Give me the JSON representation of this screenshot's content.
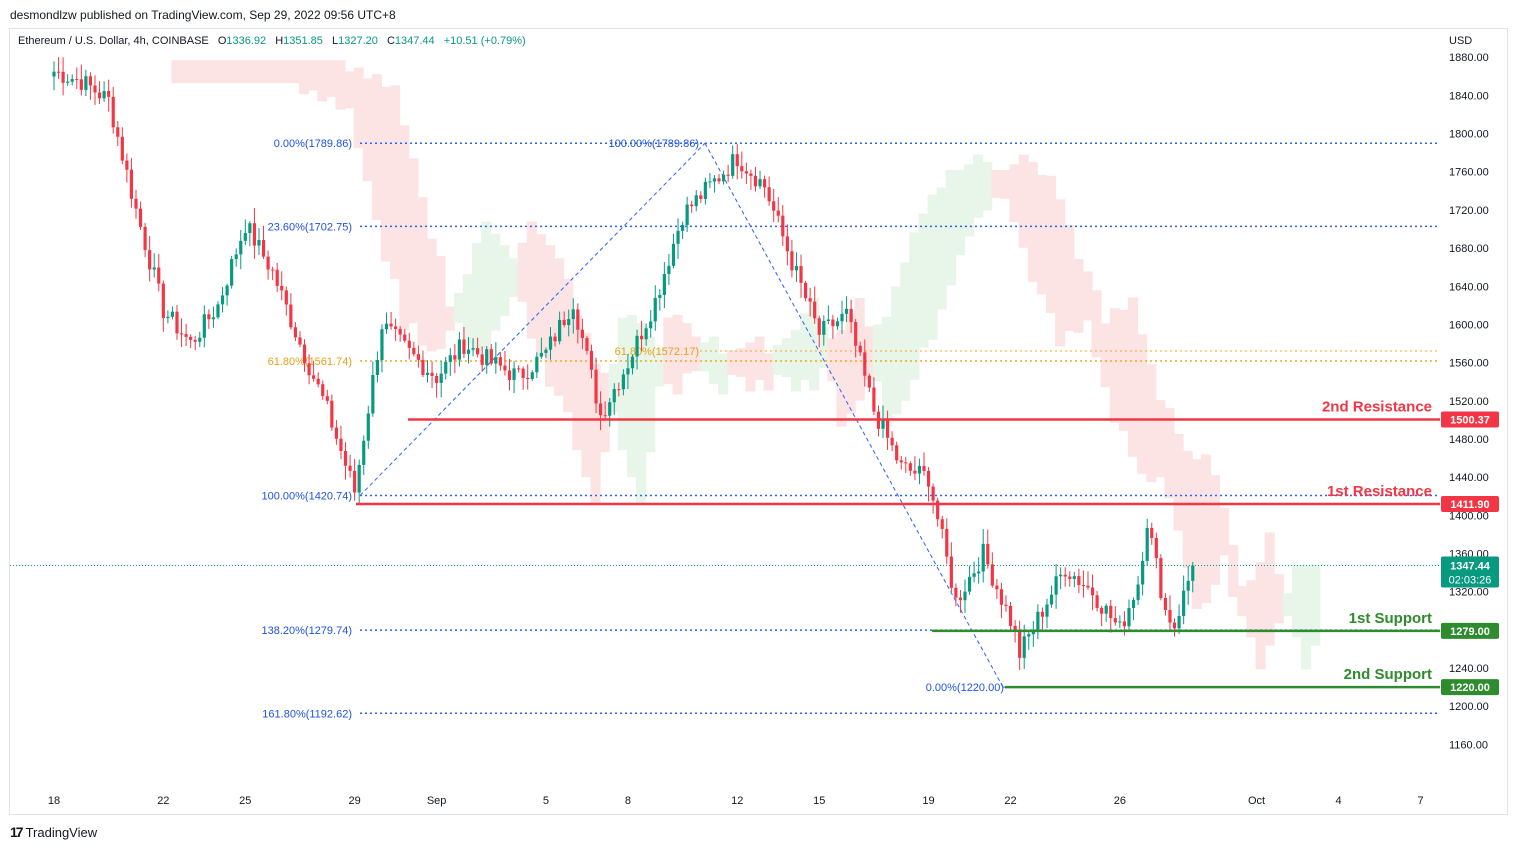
{
  "publisher": "desmondlzw published on TradingView.com, Sep 29, 2022 09:56 UTC+8",
  "header": {
    "symbol": "Ethereum / U.S. Dollar, 4h, COINBASE",
    "open_label": "O",
    "open": "1336.92",
    "high_label": "H",
    "high": "1351.85",
    "low_label": "L",
    "low": "1327.20",
    "close_label": "C",
    "close": "1347.44",
    "change": "+10.51 (+0.79%)"
  },
  "footer": {
    "logo": "17",
    "brand": "TradingView"
  },
  "chart_data": {
    "type": "candlestick",
    "currency": "USD",
    "y_ticks": [
      "1880.00",
      "1840.00",
      "1800.00",
      "1760.00",
      "1720.00",
      "1680.00",
      "1640.00",
      "1600.00",
      "1560.00",
      "1520.00",
      "1480.00",
      "1440.00",
      "1400.00",
      "1360.00",
      "1320.00",
      "1280.00",
      "1240.00",
      "1200.00",
      "1160.00"
    ],
    "ylim": [
      1130,
      1920
    ],
    "x_ticks": [
      {
        "label": "18",
        "i": 0
      },
      {
        "label": "22",
        "i": 24
      },
      {
        "label": "25",
        "i": 42
      },
      {
        "label": "29",
        "i": 66
      },
      {
        "label": "Sep",
        "i": 84
      },
      {
        "label": "5",
        "i": 108
      },
      {
        "label": "8",
        "i": 126
      },
      {
        "label": "12",
        "i": 150
      },
      {
        "label": "15",
        "i": 168
      },
      {
        "label": "19",
        "i": 192
      },
      {
        "label": "22",
        "i": 210
      },
      {
        "label": "26",
        "i": 234
      },
      {
        "label": "Oct",
        "i": 264
      },
      {
        "label": "4",
        "i": 282
      },
      {
        "label": "7",
        "i": 300
      }
    ],
    "close_waypoints": [
      [
        0,
        1865
      ],
      [
        6,
        1855
      ],
      [
        12,
        1835
      ],
      [
        18,
        1720
      ],
      [
        24,
        1615
      ],
      [
        30,
        1580
      ],
      [
        36,
        1620
      ],
      [
        42,
        1705
      ],
      [
        48,
        1655
      ],
      [
        54,
        1580
      ],
      [
        60,
        1510
      ],
      [
        66,
        1425
      ],
      [
        72,
        1600
      ],
      [
        78,
        1570
      ],
      [
        84,
        1545
      ],
      [
        90,
        1580
      ],
      [
        96,
        1560
      ],
      [
        102,
        1545
      ],
      [
        108,
        1570
      ],
      [
        114,
        1625
      ],
      [
        120,
        1505
      ],
      [
        126,
        1560
      ],
      [
        132,
        1625
      ],
      [
        138,
        1715
      ],
      [
        144,
        1745
      ],
      [
        150,
        1775
      ],
      [
        156,
        1745
      ],
      [
        162,
        1665
      ],
      [
        168,
        1590
      ],
      [
        174,
        1610
      ],
      [
        180,
        1510
      ],
      [
        186,
        1450
      ],
      [
        192,
        1440
      ],
      [
        198,
        1310
      ],
      [
        204,
        1360
      ],
      [
        210,
        1290
      ],
      [
        212,
        1255
      ],
      [
        218,
        1310
      ],
      [
        222,
        1345
      ],
      [
        228,
        1320
      ],
      [
        234,
        1280
      ],
      [
        238,
        1330
      ],
      [
        240,
        1395
      ],
      [
        244,
        1300
      ],
      [
        246,
        1285
      ],
      [
        250,
        1347
      ]
    ],
    "last_index": 250,
    "fib_levels": [
      {
        "label": "0.00%(1789.86)",
        "value": 1789.86,
        "color": "#2962ff",
        "text_color": "#1e53e5"
      },
      {
        "label": "23.60%(1702.75)",
        "value": 1702.75,
        "color": "#2962ff",
        "text_color": "#1e53e5"
      },
      {
        "label": "61.80%(1561.74)",
        "value": 1561.74,
        "color": "#f5a623",
        "text_color": "#e8a018"
      },
      {
        "label": "100.00%(1420.74)",
        "value": 1420.74,
        "color": "#2962ff",
        "text_color": "#1e53e5"
      },
      {
        "label": "138.20%(1279.74)",
        "value": 1279.74,
        "color": "#2962ff",
        "text_color": "#1e53e5"
      },
      {
        "label": "161.80%(1192.62)",
        "value": 1192.62,
        "color": "#2962ff",
        "text_color": "#1e53e5"
      }
    ],
    "fib2_levels": [
      {
        "label": "100.00%(1789.86)",
        "value": 1789.86,
        "color": "#2962ff",
        "text_color": "#1e53e5"
      },
      {
        "label": "61.80%(1572.17)",
        "value": 1572.17,
        "color": "#f5a623",
        "text_color": "#e8a018"
      },
      {
        "label": "0.00%(1220.00)",
        "value": 1220.0,
        "color": "#2962ff",
        "text_color": "#1e53e5"
      }
    ],
    "levels": [
      {
        "name": "2nd Resistance",
        "value": 1500.37,
        "price": "1500.37",
        "color": "#f23645"
      },
      {
        "name": "1st Resistance",
        "value": 1411.9,
        "price": "1411.90",
        "color": "#f23645"
      },
      {
        "name": "1st Support",
        "value": 1279.0,
        "price": "1279.00",
        "color": "#2e8b2e"
      },
      {
        "name": "2nd Support",
        "value": 1220.0,
        "price": "1220.00",
        "color": "#2e8b2e"
      }
    ],
    "last_price": {
      "price": "1347.44",
      "countdown": "02:03:26",
      "value": 1347.44,
      "color": "#089981"
    },
    "colors": {
      "up": "#089981",
      "down": "#f23645",
      "cloud_bull": "#e8f5e9",
      "cloud_bear": "#fde4e4",
      "grid": "#f0f3fa"
    }
  }
}
